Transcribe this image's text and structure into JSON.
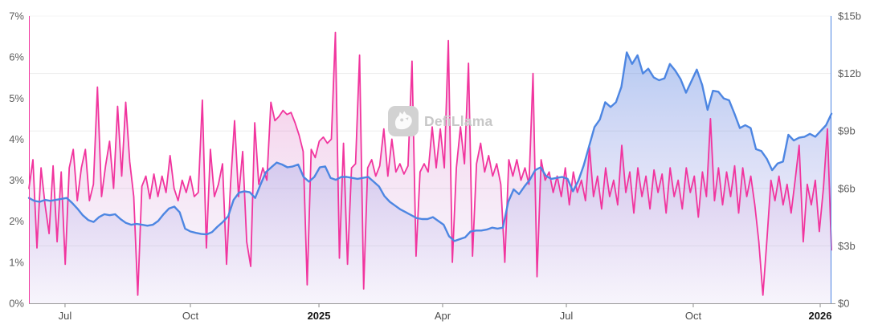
{
  "watermark": {
    "text": "DefiLlama"
  },
  "chart_data": {
    "type": "line",
    "title": "",
    "legend": "none",
    "grid": "horizontal-only",
    "grid_color": "#ededed",
    "axis_label_color": "#5d5d5d",
    "x_label_color": "#4c4c4c",
    "x_label_bold_color": "#141414",
    "bottom_axis_color": "#999999",
    "left_axis": {
      "unit": "%",
      "min": 0,
      "max": 7,
      "tick_labels": [
        "0%",
        "1%",
        "2%",
        "3%",
        "4%",
        "5%",
        "6%",
        "7%"
      ]
    },
    "right_axis": {
      "unit": "$b",
      "min": 0,
      "max": 15,
      "tick_labels": [
        "$0",
        "$3b",
        "$6b",
        "$9b",
        "$12b",
        "$15b"
      ],
      "grid_values": [
        3,
        6,
        9,
        12,
        15
      ]
    },
    "x_axis": {
      "ticks": [
        {
          "label": "Jul",
          "pos": 0.045,
          "bold": false
        },
        {
          "label": "Oct",
          "pos": 0.2012,
          "bold": false
        },
        {
          "label": "2025",
          "pos": 0.3614,
          "bold": true
        },
        {
          "label": "Apr",
          "pos": 0.5155,
          "bold": false
        },
        {
          "label": "Jul",
          "pos": 0.6697,
          "bold": false
        },
        {
          "label": "Oct",
          "pos": 0.8278,
          "bold": false
        },
        {
          "label": "2026",
          "pos": 0.986,
          "bold": true
        }
      ]
    },
    "series": [
      {
        "name": "pink-series",
        "axis": "left",
        "color": "#f1359e",
        "line_width": 1.8,
        "area_top": "rgba(242,56,158,0.33)",
        "area_bottom": "rgba(167,139,222,0.05)",
        "values": [
          2.8,
          3.5,
          1.35,
          3.3,
          2.4,
          1.7,
          3.35,
          1.5,
          3.2,
          0.95,
          3.3,
          3.75,
          2.5,
          3.3,
          3.75,
          2.5,
          2.9,
          5.27,
          2.6,
          3.35,
          3.95,
          2.8,
          4.8,
          3.1,
          4.9,
          3.45,
          2.6,
          0.2,
          2.85,
          3.1,
          2.55,
          3.15,
          2.6,
          3.1,
          2.7,
          3.6,
          2.8,
          2.5,
          3.0,
          2.7,
          3.1,
          2.6,
          2.7,
          4.95,
          1.35,
          3.75,
          2.6,
          2.9,
          3.4,
          0.95,
          2.9,
          4.45,
          2.6,
          3.7,
          1.5,
          0.9,
          4.4,
          2.9,
          3.3,
          3.0,
          4.9,
          4.45,
          4.55,
          4.7,
          4.6,
          4.65,
          4.4,
          4.1,
          3.7,
          0.45,
          3.75,
          3.55,
          3.95,
          4.05,
          3.9,
          4.0,
          6.6,
          1.1,
          3.9,
          0.95,
          3.3,
          3.4,
          6.05,
          0.35,
          3.3,
          3.5,
          3.1,
          3.35,
          4.25,
          3.1,
          4.0,
          3.2,
          3.4,
          3.15,
          3.35,
          5.9,
          1.15,
          3.2,
          3.4,
          3.2,
          4.3,
          3.3,
          4.25,
          3.3,
          6.4,
          1.0,
          3.3,
          4.3,
          3.4,
          5.85,
          1.15,
          3.4,
          3.9,
          3.2,
          3.6,
          3.1,
          3.4,
          2.9,
          1.0,
          3.5,
          3.1,
          3.5,
          3.0,
          3.3,
          2.9,
          5.6,
          0.65,
          3.5,
          3.0,
          3.2,
          2.7,
          3.1,
          2.6,
          3.3,
          2.4,
          3.2,
          2.7,
          3.0,
          2.5,
          3.8,
          2.6,
          3.1,
          2.3,
          3.3,
          2.6,
          3.0,
          2.4,
          3.85,
          2.7,
          3.2,
          2.2,
          3.3,
          2.6,
          3.1,
          2.3,
          3.25,
          2.7,
          3.15,
          2.2,
          3.3,
          2.6,
          3.0,
          2.3,
          3.3,
          2.7,
          3.1,
          2.1,
          3.2,
          2.6,
          4.5,
          2.5,
          3.3,
          2.4,
          3.2,
          2.6,
          3.35,
          2.2,
          3.3,
          2.6,
          3.1,
          2.4,
          1.5,
          0.2,
          1.55,
          3.0,
          2.5,
          3.1,
          2.4,
          2.9,
          2.2,
          3.0,
          3.85,
          1.5,
          2.9,
          2.4,
          3.0,
          1.75,
          2.8,
          4.25,
          1.3
        ]
      },
      {
        "name": "blue-series",
        "axis": "right",
        "color": "#4d86e2",
        "line_width": 2.4,
        "area_top": "rgba(77,134,226,0.50)",
        "area_bottom": "rgba(167,139,222,0.04)",
        "values": [
          5.5,
          5.35,
          5.3,
          5.4,
          5.35,
          5.4,
          5.45,
          5.5,
          5.25,
          4.95,
          4.6,
          4.35,
          4.25,
          4.5,
          4.65,
          4.6,
          4.65,
          4.4,
          4.2,
          4.1,
          4.15,
          4.1,
          4.05,
          4.1,
          4.3,
          4.65,
          4.95,
          5.05,
          4.75,
          3.9,
          3.75,
          3.68,
          3.62,
          3.6,
          3.72,
          4.0,
          4.25,
          4.55,
          5.4,
          5.78,
          5.85,
          5.8,
          5.5,
          6.2,
          6.85,
          7.1,
          7.35,
          7.25,
          7.1,
          7.15,
          7.25,
          6.6,
          6.35,
          6.6,
          7.1,
          7.15,
          6.55,
          6.45,
          6.6,
          6.6,
          6.55,
          6.5,
          6.55,
          6.6,
          6.35,
          6.1,
          5.6,
          5.3,
          5.1,
          4.9,
          4.75,
          4.6,
          4.45,
          4.4,
          4.4,
          4.5,
          4.3,
          4.1,
          3.5,
          3.25,
          3.35,
          3.45,
          3.75,
          3.8,
          3.8,
          3.85,
          3.95,
          3.9,
          3.95,
          5.3,
          5.95,
          5.7,
          6.1,
          6.45,
          6.95,
          7.1,
          6.65,
          6.5,
          6.55,
          6.6,
          6.5,
          5.85,
          6.4,
          7.2,
          8.2,
          9.2,
          9.6,
          10.5,
          10.25,
          10.5,
          11.3,
          13.1,
          12.5,
          12.95,
          12.0,
          12.25,
          11.8,
          11.65,
          11.75,
          12.5,
          12.15,
          11.7,
          11.0,
          11.6,
          12.2,
          11.4,
          10.1,
          11.1,
          11.05,
          10.7,
          10.6,
          9.9,
          9.15,
          9.3,
          9.15,
          8.05,
          7.95,
          7.55,
          6.95,
          7.3,
          7.4,
          8.8,
          8.5,
          8.65,
          8.7,
          8.85,
          8.7,
          9.0,
          9.3,
          9.9
        ]
      }
    ]
  }
}
